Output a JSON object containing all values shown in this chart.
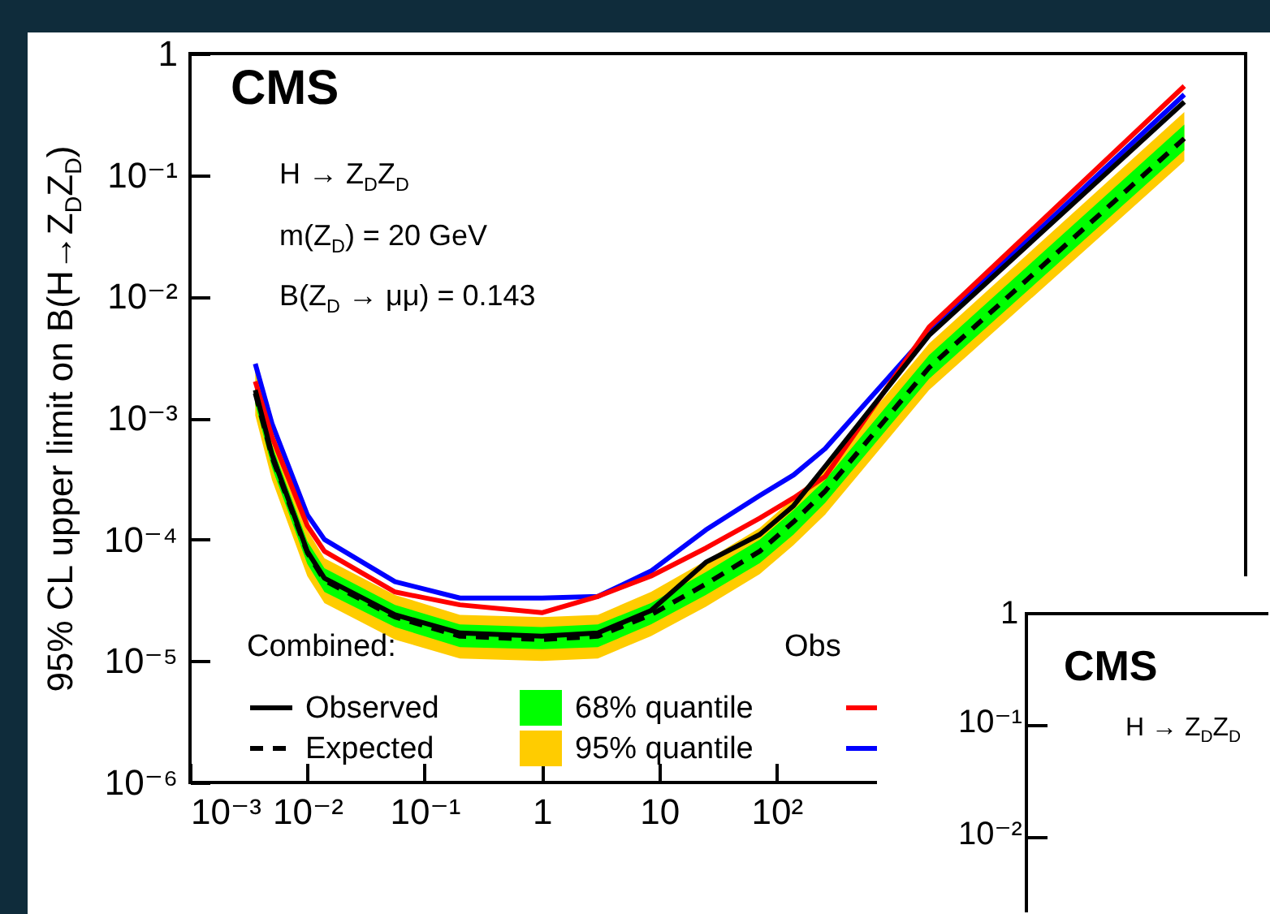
{
  "chart_data": [
    {
      "type": "line",
      "log": "xy",
      "legend": "bottom",
      "legend_title": "Combined:",
      "ylabel": "95% CL upper limit on B(H→Z$_{D}$Z$_{D}$)",
      "annotations": [
        "CMS",
        "H → Z$_{D}$Z$_{D}$",
        "m(Z$_{D}$) = 20 GeV",
        "B(Z$_{D}$ → μμ) = 0.143",
        "Obs"
      ],
      "xlim": [
        0.001,
        1000000
      ],
      "ylim": [
        1e-06,
        1
      ],
      "xticks": [
        {
          "value": 0.001,
          "label": "10⁻³"
        },
        {
          "value": 0.01,
          "label": "10⁻²"
        },
        {
          "value": 0.1,
          "label": "10⁻¹"
        },
        1,
        10,
        {
          "value": 100,
          "label": "10²"
        },
        {
          "value": 1000,
          "label": null
        },
        {
          "value": 10000,
          "label": null
        },
        {
          "value": 100000,
          "label": null
        },
        {
          "value": 1000000,
          "label": null
        }
      ],
      "yticks": [
        1,
        {
          "value": 0.1,
          "label": "10⁻¹"
        },
        {
          "value": 0.01,
          "label": "10⁻²"
        },
        {
          "value": 0.001,
          "label": "10⁻³"
        },
        {
          "value": 0.0001,
          "label": "10⁻⁴"
        },
        {
          "value": 1e-05,
          "label": "10⁻⁵"
        },
        {
          "value": 1e-06,
          "label": "10⁻⁶"
        }
      ],
      "x": [
        0.0036,
        0.005,
        0.01,
        0.014,
        0.056,
        0.2,
        1,
        3,
        8.5,
        25,
        72,
        140,
        260,
        2000,
        300000
      ],
      "series": [
        {
          "name": "95% quantile",
          "type": "area",
          "color": "#ffcc00",
          "lower": [
            0.00105,
            0.00031,
            5e-05,
            3e-05,
            1.5e-05,
            1.05e-05,
            1e-05,
            1.05e-05,
            1.6e-05,
            2.8e-05,
            5.2e-05,
            9e-05,
            0.00016,
            0.0017,
            0.13
          ],
          "values": [
            null,
            null,
            null,
            null,
            null,
            null,
            null,
            null,
            null,
            null,
            null,
            null,
            null,
            null,
            null
          ],
          "upper": [
            0.0025,
            0.00074,
            0.00012,
            7e-05,
            3.5e-05,
            2.4e-05,
            2.3e-05,
            2.4e-05,
            3.7e-05,
            6.7e-05,
            0.000125,
            0.00022,
            0.00039,
            0.0041,
            0.33
          ]
        },
        {
          "name": "68% quantile",
          "type": "area",
          "color": "#00ff00",
          "lower": [
            0.0013,
            0.00039,
            6.3e-05,
            3.7e-05,
            1.9e-05,
            1.3e-05,
            1.25e-05,
            1.3e-05,
            2e-05,
            3.5e-05,
            6.4e-05,
            0.00011,
            0.0002,
            0.0021,
            0.16
          ],
          "values": [
            null,
            null,
            null,
            null,
            null,
            null,
            null,
            null,
            null,
            null,
            null,
            null,
            null,
            null,
            null
          ],
          "upper": [
            0.002,
            0.0006,
            9.7e-05,
            5.8e-05,
            2.9e-05,
            2e-05,
            1.9e-05,
            2e-05,
            3e-05,
            5.4e-05,
            0.0001,
            0.000175,
            0.00031,
            0.0033,
            0.26
          ]
        },
        {
          "type": "line",
          "color": "#0000ff",
          "values": [
            0.0028,
            0.0009,
            0.00016,
            0.0001,
            4.5e-05,
            3.3e-05,
            3.3e-05,
            3.4e-05,
            5.5e-05,
            0.00012,
            0.00023,
            0.00034,
            0.00056,
            0.0051,
            0.46
          ]
        },
        {
          "type": "line",
          "color": "#ff0000",
          "values": [
            0.002,
            0.0007,
            0.00013,
            8e-05,
            3.7e-05,
            2.9e-05,
            2.5e-05,
            3.4e-05,
            5e-05,
            8.5e-05,
            0.00015,
            0.00022,
            0.00033,
            0.0056,
            0.54
          ]
        },
        {
          "name": "Expected",
          "type": "line",
          "line_style": "dashed",
          "color": "#000000",
          "values": [
            0.0016,
            0.00048,
            7.8e-05,
            4.6e-05,
            2.3e-05,
            1.6e-05,
            1.5e-05,
            1.6e-05,
            2.4e-05,
            4.3e-05,
            8e-05,
            0.00014,
            0.00025,
            0.0026,
            0.2
          ]
        },
        {
          "name": "Observed",
          "type": "line",
          "line_style": "solid",
          "color": "#000000",
          "values": [
            0.0017,
            0.0005,
            8e-05,
            4.8e-05,
            2.4e-05,
            1.7e-05,
            1.6e-05,
            1.7e-05,
            2.6e-05,
            6.5e-05,
            0.00011,
            0.00019,
            0.0004,
            0.0048,
            0.4
          ]
        }
      ]
    },
    {
      "type": "other",
      "annotations": [
        "CMS",
        "H → Z$_{D}$Z$_{D}$",
        "1",
        "10⁻¹",
        "10⁻²"
      ]
    }
  ]
}
